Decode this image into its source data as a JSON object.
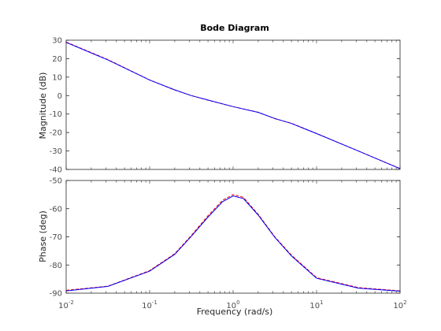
{
  "chart_data": {
    "type": "line",
    "title": "Bode Diagram",
    "xlabel": "Frequency  (rad/s)",
    "x_scale": "log",
    "xlim": [
      0.01,
      100
    ],
    "x_tick_labels": [
      {
        "base": "10",
        "exp": "-2"
      },
      {
        "base": "10",
        "exp": "-1"
      },
      {
        "base": "10",
        "exp": "0"
      },
      {
        "base": "10",
        "exp": "1"
      },
      {
        "base": "10",
        "exp": "2"
      }
    ],
    "grid": false,
    "colors": {
      "series_a": "#ff0000",
      "series_b": "#0000ff"
    },
    "panels": [
      {
        "ylabel": "Magnitude (dB)",
        "ylim": [
          -40,
          30
        ],
        "yticks": [
          30,
          20,
          10,
          0,
          -10,
          -20,
          -30,
          -40
        ],
        "series": [
          {
            "color": "#ff0000",
            "style": "dashed",
            "x": [
              0.01,
              0.0316,
              0.1,
              0.2,
              0.316,
              0.5,
              1.0,
              2.0,
              3.16,
              5.0,
              10.0,
              31.6,
              100.0
            ],
            "y": [
              29.0,
              19.5,
              8.5,
              3.0,
              0.0,
              -2.5,
              -6.0,
              -9.0,
              -12.5,
              -15.0,
              -20.5,
              -30.0,
              -39.5
            ]
          },
          {
            "color": "#0000ff",
            "style": "solid",
            "x": [
              0.01,
              0.0316,
              0.1,
              0.2,
              0.316,
              0.5,
              1.0,
              2.0,
              3.16,
              5.0,
              10.0,
              31.6,
              100.0
            ],
            "y": [
              28.8,
              19.3,
              8.4,
              3.1,
              0.0,
              -2.4,
              -6.0,
              -9.1,
              -12.4,
              -15.1,
              -20.6,
              -30.0,
              -39.6
            ]
          }
        ]
      },
      {
        "ylabel": "Phase (deg)",
        "ylim": [
          -90,
          -50
        ],
        "yticks": [
          -50,
          -60,
          -70,
          -80,
          -90
        ],
        "series": [
          {
            "color": "#ff0000",
            "style": "dashed",
            "x": [
              0.01,
              0.0316,
              0.1,
              0.2,
              0.316,
              0.5,
              0.75,
              1.0,
              1.33,
              2.0,
              3.16,
              5.0,
              10.0,
              31.6,
              100.0
            ],
            "y": [
              -89.0,
              -87.5,
              -82.0,
              -76.0,
              -69.5,
              -62.5,
              -57.0,
              -55.0,
              -56.0,
              -62.0,
              -70.0,
              -76.5,
              -84.5,
              -88.0,
              -89.2
            ]
          },
          {
            "color": "#0000ff",
            "style": "solid",
            "x": [
              0.01,
              0.0316,
              0.1,
              0.2,
              0.316,
              0.5,
              0.75,
              1.0,
              1.33,
              2.0,
              3.16,
              5.0,
              10.0,
              31.6,
              100.0
            ],
            "y": [
              -89.2,
              -87.6,
              -82.2,
              -76.2,
              -69.8,
              -63.0,
              -57.5,
              -55.5,
              -56.4,
              -62.3,
              -70.2,
              -76.8,
              -84.7,
              -88.2,
              -89.3
            ]
          }
        ]
      }
    ]
  }
}
